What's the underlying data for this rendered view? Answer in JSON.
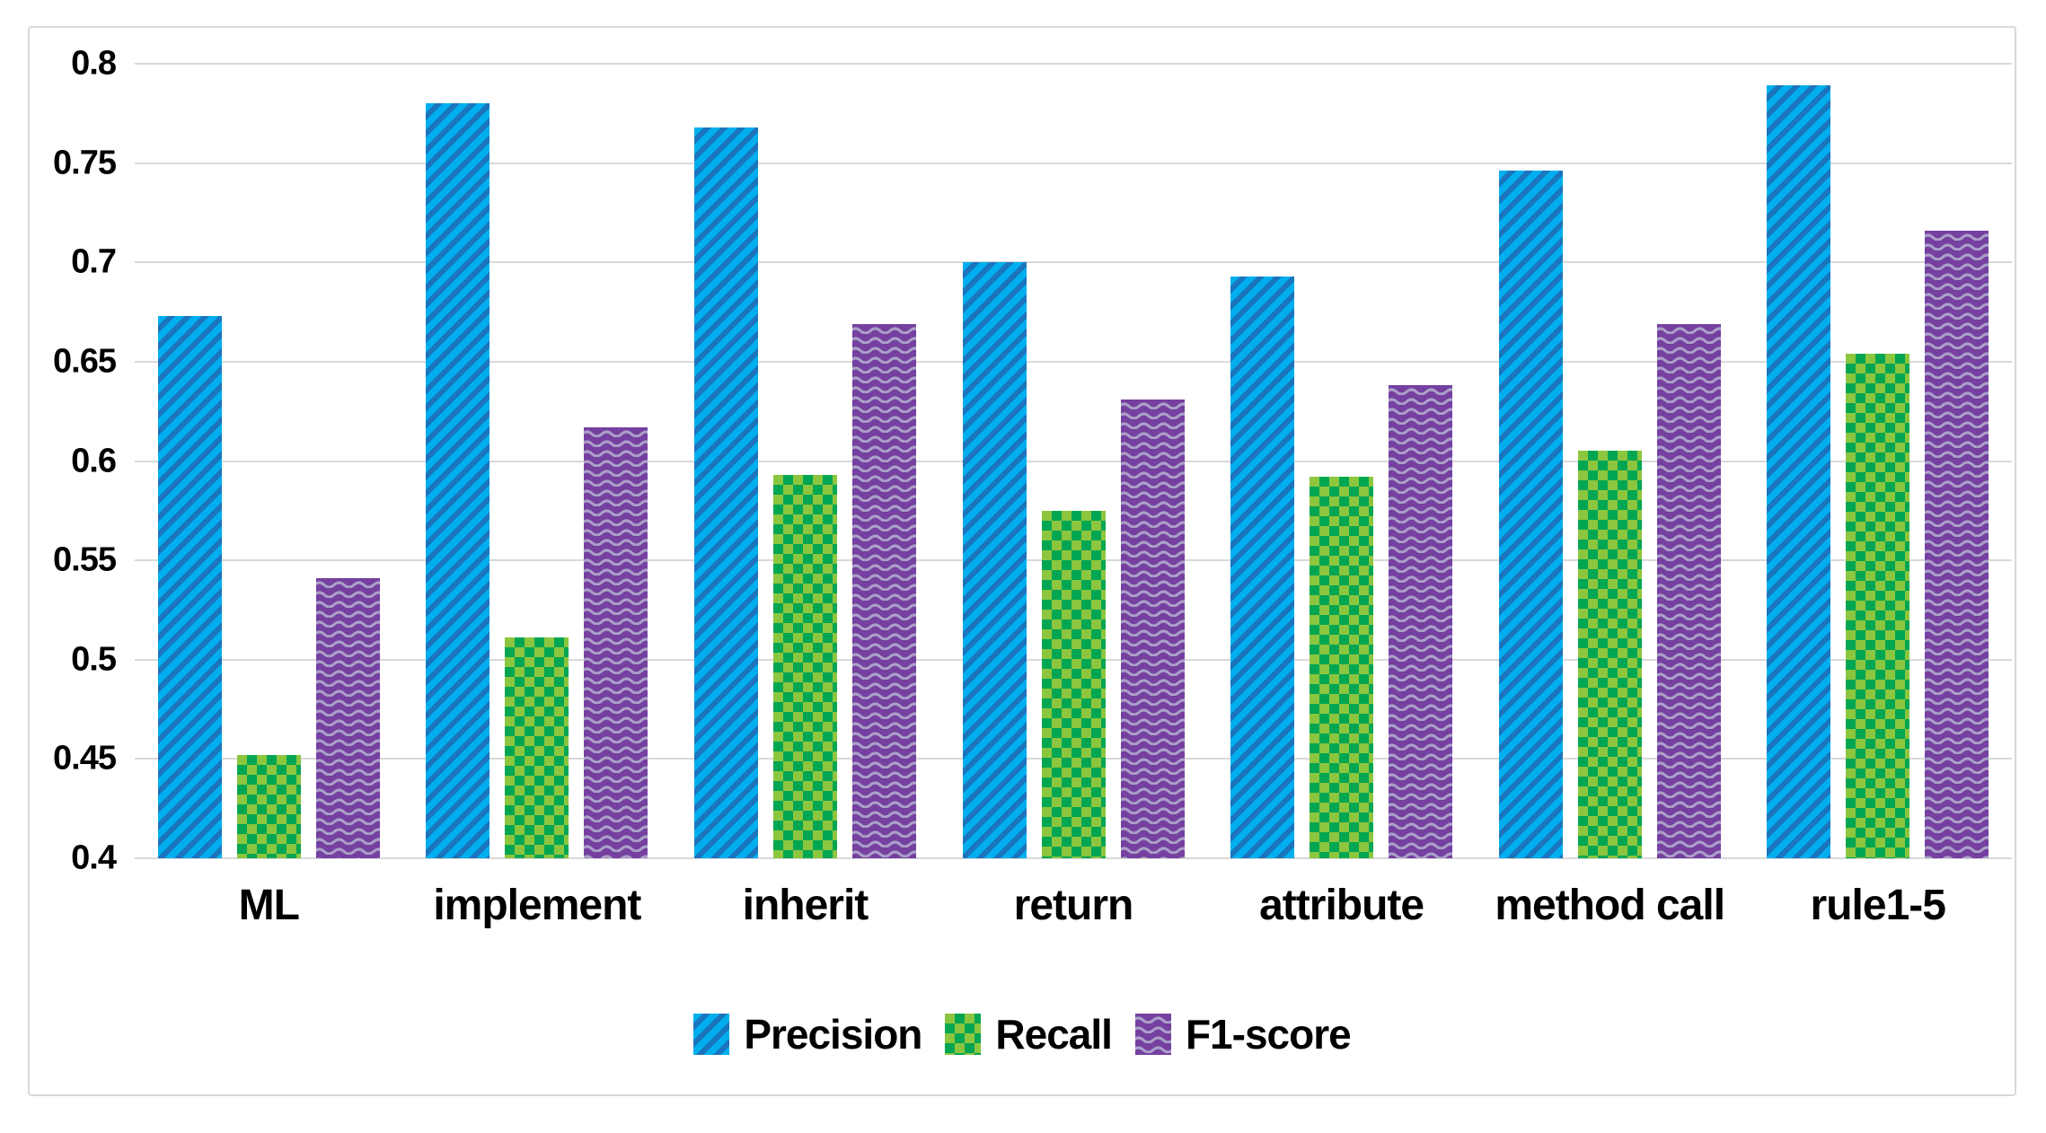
{
  "chart_data": {
    "type": "bar",
    "title": "",
    "xlabel": "",
    "ylabel": "",
    "categories": [
      "ML",
      "implement",
      "inherit",
      "return",
      "attribute",
      "method call",
      "rule1-5"
    ],
    "series": [
      {
        "name": "Precision",
        "pattern": "diagonal-stripes",
        "color_main": "#00AEEF",
        "color_accent": "#1B75BC",
        "values": [
          0.673,
          0.78,
          0.768,
          0.7,
          0.693,
          0.746,
          0.789
        ]
      },
      {
        "name": "Recall",
        "pattern": "checkerboard",
        "color_main": "#8CC63F",
        "color_accent": "#00A651",
        "values": [
          0.452,
          0.511,
          0.593,
          0.575,
          0.592,
          0.605,
          0.654
        ]
      },
      {
        "name": "F1-score",
        "pattern": "waves",
        "color_main": "#7540A0",
        "color_accent": "#ABA0C8",
        "values": [
          0.541,
          0.617,
          0.669,
          0.631,
          0.638,
          0.669,
          0.716
        ]
      }
    ],
    "ylim": [
      0.4,
      0.8
    ],
    "yticks": [
      0.8,
      0.75,
      0.7,
      0.65,
      0.6,
      0.55,
      0.5,
      0.45,
      0.4
    ],
    "ytick_labels": [
      "0.8",
      "0.75",
      "0.7",
      "0.65",
      "0.6",
      "0.55",
      "0.5",
      "0.45",
      "0.4"
    ],
    "grid": true,
    "gridline_color": "#D9D9D9",
    "frame_color": "#D9D9D9",
    "legend_position": "bottom"
  }
}
